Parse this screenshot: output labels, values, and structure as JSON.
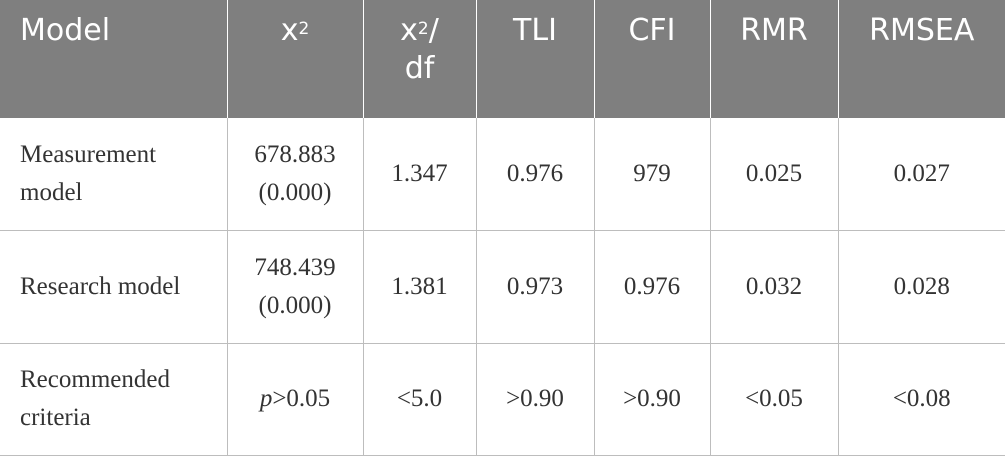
{
  "table": {
    "headers": {
      "model": "Model",
      "chi2": {
        "base": "x",
        "sup": "2"
      },
      "chi2df": {
        "base": "x",
        "sup": "2",
        "suffix": "/",
        "line2": "df"
      },
      "tli": "TLI",
      "cfi": "CFI",
      "rmr": "RMR",
      "rmsea": "RMSEA"
    },
    "rows": [
      {
        "model_line1": "Measurement",
        "model_line2": "model",
        "chi2_value": "678.883",
        "chi2_p": "(0.000)",
        "chi2df": "1.347",
        "tli": "0.976",
        "cfi": "979",
        "rmr": "0.025",
        "rmsea": "0.027"
      },
      {
        "model_line1": "Research model",
        "chi2_value": "748.439",
        "chi2_p": "(0.000)",
        "chi2df": "1.381",
        "tli": "0.973",
        "cfi": "0.976",
        "rmr": "0.032",
        "rmsea": "0.028"
      },
      {
        "model_line1": "Recommended",
        "model_line2": "criteria",
        "chi2_p_symbol": "p",
        "chi2_criteria": ">0.05",
        "chi2df": "<5.0",
        "tli": ">0.90",
        "cfi": ">0.90",
        "rmr": "<0.05",
        "rmsea": "<0.08"
      }
    ]
  }
}
